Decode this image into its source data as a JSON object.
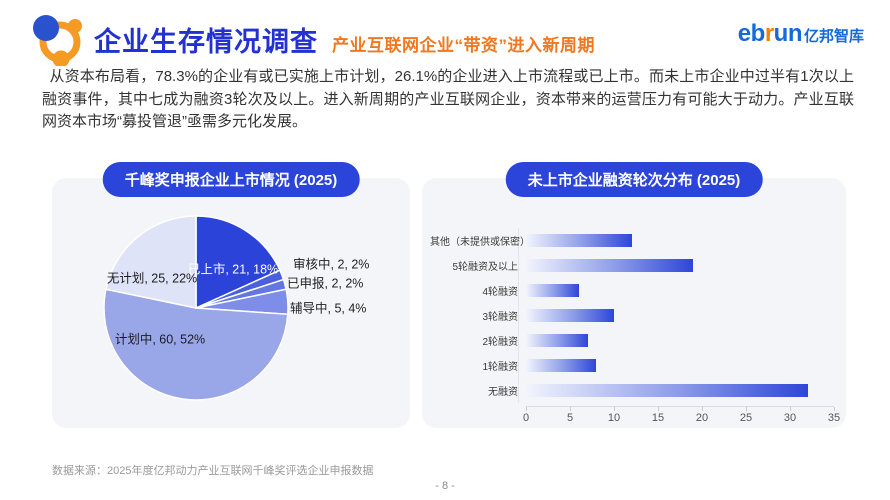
{
  "header": {
    "title": "企业生存情况调查",
    "subtitle": "产业互联网企业“带资”进入新周期",
    "logo": {
      "eb": "eb",
      "r": "r",
      "un": "un",
      "cn": "亿邦智库"
    }
  },
  "body_text": "从资本布局看，78.3%的企业有或已实施上市计划，26.1%的企业进入上市流程或已上市。而未上市企业中过半有1次以上融资事件，其中七成为融资3轮次及以上。进入新周期的产业互联网企业，资本带来的运营压力有可能大于动力。产业互联网资本市场“募投管退”亟需多元化发展。",
  "chart_data": [
    {
      "type": "pie",
      "title": "千峰奖申报企业上市情况 (2025)",
      "labels": [
        "已上市",
        "审核中",
        "已申报",
        "辅导中",
        "计划中",
        "无计划"
      ],
      "values": [
        21,
        2,
        2,
        5,
        60,
        25
      ],
      "percents": [
        "18%",
        "2%",
        "2%",
        "4%",
        "52%",
        "22%"
      ],
      "display_labels": [
        "已上市, 21, 18%",
        "审核中, 2, 2%",
        "已申报, 2, 2%",
        "辅导中, 5, 4%",
        "计划中, 60, 52%",
        "无计划, 25, 22%"
      ],
      "colors": [
        "#2b43d8",
        "#4a60dd",
        "#6377e2",
        "#7d8de8",
        "#99a6e8",
        "#dfe3f8"
      ],
      "start": "top-clockwise",
      "legend": "none"
    },
    {
      "type": "bar",
      "orientation": "horizontal",
      "title": "未上市企业融资轮次分布 (2025)",
      "categories": [
        "其他（未提供或保密）",
        "5轮融资及以上",
        "4轮融资",
        "3轮融资",
        "2轮融资",
        "1轮融资",
        "无融资"
      ],
      "values": [
        12,
        19,
        6,
        10,
        7,
        8,
        32
      ],
      "xlim": [
        0,
        35
      ],
      "xticks": [
        0,
        5,
        10,
        15,
        20,
        25,
        30,
        35
      ],
      "bar_gradient": [
        "#f2f4fd",
        "#2e46d8"
      ],
      "grid": "off"
    }
  ],
  "footer": {
    "source": "数据来源：2025年度亿邦动力产业互联网千峰奖评选企业申报数据",
    "page": "- 8 -"
  },
  "colors": {
    "title_blue": "#2231d0",
    "accent_orange": "#f07820",
    "pill_blue": "#2b44d9",
    "card_bg": "#f4f5f8"
  }
}
